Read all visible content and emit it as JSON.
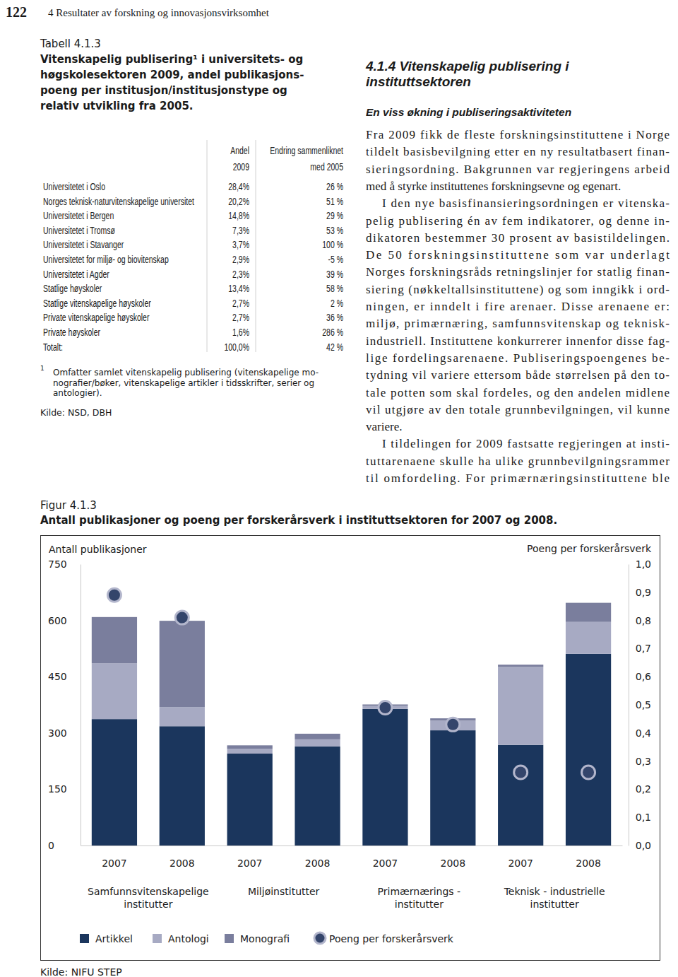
{
  "page": {
    "number": "122",
    "running_head": "4 Resultater av forskning og innovasjonsvirksomhet"
  },
  "table": {
    "label": "Tabell 4.1.3",
    "title": [
      "Vitenskapelig publisering¹ i universitets- og",
      "høgskolesektoren 2009, andel publikasjons-",
      "poeng per institusjon/institusjonstype og",
      "relativ utvikling fra 2005."
    ],
    "header": [
      [
        "Andel",
        "2009"
      ],
      [
        "Endring sammenliknet",
        "med 2005"
      ]
    ],
    "rows": [
      [
        "Universitetet i Oslo",
        "28,4%",
        "26 %"
      ],
      [
        "Norges teknisk-naturvitenskapelige universitet",
        "20,2%",
        "51 %"
      ],
      [
        "Universitetet i Bergen",
        "14,8%",
        "29 %"
      ],
      [
        "Universitetet i Tromsø",
        "7,3%",
        "53 %"
      ],
      [
        "Universitetet i Stavanger",
        "3,7%",
        "100 %"
      ],
      [
        "Universitetet for miljø- og biovitenskap",
        "2,9%",
        "-5 %"
      ],
      [
        "Universitetet i Agder",
        "2,3%",
        "39 %"
      ],
      [
        "Statlige høyskoler",
        "13,4%",
        "58 %"
      ],
      [
        "Statlige vitenskapelige høyskoler",
        "2,7%",
        "2 %"
      ],
      [
        "Private vitenskapelige høyskoler",
        "2,7%",
        "36 %"
      ],
      [
        "Private høyskoler",
        "1,6%",
        "286 %"
      ],
      [
        "Totalt:",
        "100,0%",
        "42 %"
      ]
    ],
    "footnote": {
      "mark": "1",
      "lines": [
        "Omfatter samlet vitenskapelig publisering (vitenskapelige mo-",
        "nografier/bøker, vitenskapelige artikler i tidsskrifter, serier og",
        "antologier)."
      ]
    },
    "source": "Kilde: NSD, DBH"
  },
  "section": {
    "heading": [
      "4.1.4 Vitenskapelig publisering i",
      "instituttsektoren"
    ],
    "subheading": "En viss økning i publiseringsaktiviteten",
    "paragraphs": [
      [
        "Fra 2009 fikk de fleste forskningsinstituttene i Norge",
        "tildelt basisbevilgning etter en ny resultatbasert finan-",
        "sieringsordning. Bakgrunnen var regjeringens arbeid",
        "med å styrke instituttenes forskningsevne og egenart."
      ],
      [
        "I den nye basisfinansieringsordningen er vitenska-",
        "pelig publisering én av fem indikatorer, og denne in-",
        "dikatoren bestemmer 30 prosent av basistildelingen.",
        "De 50 forskningsinstituttene som var underlagt",
        "Norges forskningsråds retningslinjer for statlig finan-",
        "siering (nøkkeltallsinstituttene) og som inngikk i ord-",
        "ningen, er inndelt i fire arenaer. Disse arenaene er:",
        "miljø, primærnæring, samfunnsvitenskap og teknisk-",
        "industriell. Instituttene konkurrerer innenfor disse fag-",
        "lige fordelingsarenaene. Publiseringspoengenes be-",
        "tydning vil variere ettersom både størrelsen på den to-",
        "tale potten som skal fordeles, og den andelen midlene",
        "vil utgjøre av den totale grunnbevilgningen, vil kunne",
        "variere."
      ],
      [
        "I tildelingen for 2009 fastsatte regjeringen at insti-",
        "tuttarenaene skulle ha ulike grunnbevilgningsrammer",
        "til omfordeling. For primærnæringsinstituttene ble"
      ]
    ]
  },
  "chart_data": {
    "type": "bar",
    "figure_label": "Figur 4.1.3",
    "title": "Antall publikasjoner og poeng per forskerårsverk i instituttsektoren for 2007 og 2008.",
    "ylabel": "Antall publikasjoner",
    "y2label": "Poeng per forskerårsverk",
    "categories": [
      "2007",
      "2008",
      "2007",
      "2008",
      "2007",
      "2008",
      "2007",
      "2008"
    ],
    "group_labels": [
      [
        "Samfunnsvitenskapelige",
        "institutter"
      ],
      [
        "Miljøinstitutter"
      ],
      [
        "Primærnærings -",
        "institutter"
      ],
      [
        "Teknisk - industrielle",
        "institutter"
      ]
    ],
    "stacked": true,
    "legend": "bottom",
    "ylim": [
      0,
      750
    ],
    "yticks": [
      0,
      150,
      300,
      450,
      600,
      750
    ],
    "y2lim": [
      0,
      1
    ],
    "y2ticks": [
      {
        "value": 0,
        "label": "0,0"
      },
      {
        "value": 0.1,
        "label": "0,1"
      },
      {
        "value": 0.2,
        "label": "0,2"
      },
      {
        "value": 0.3,
        "label": "0,3"
      },
      {
        "value": 0.4,
        "label": "0,4"
      },
      {
        "value": 0.5,
        "label": "0,5"
      },
      {
        "value": 0.6,
        "label": "0,6"
      },
      {
        "value": 0.7,
        "label": "0,7"
      },
      {
        "value": 0.8,
        "label": "0,8"
      },
      {
        "value": 0.9,
        "label": "0,9"
      },
      {
        "value": 1,
        "label": "1,0"
      }
    ],
    "series": [
      {
        "name": "Artikkel",
        "color": "#1b365d",
        "values": [
          337,
          318,
          245,
          264,
          364,
          307,
          268,
          511
        ]
      },
      {
        "name": "Antologi",
        "color": "#a7aac3",
        "values": [
          149,
          51,
          13,
          19,
          8,
          26,
          208,
          85
        ]
      },
      {
        "name": "Monografi",
        "color": "#7a7e9d",
        "values": [
          123,
          230,
          9,
          15,
          4,
          6,
          6,
          51
        ]
      },
      {
        "name": "Poeng per forskerårsverk",
        "type": "scatter",
        "marker": "circle",
        "axis": "y2",
        "color": "#34456b",
        "values": [
          0.89,
          0.81,
          null,
          null,
          0.49,
          0.43,
          0.26,
          0.26
        ]
      }
    ],
    "source": "Kilde: NIFU STEP"
  }
}
